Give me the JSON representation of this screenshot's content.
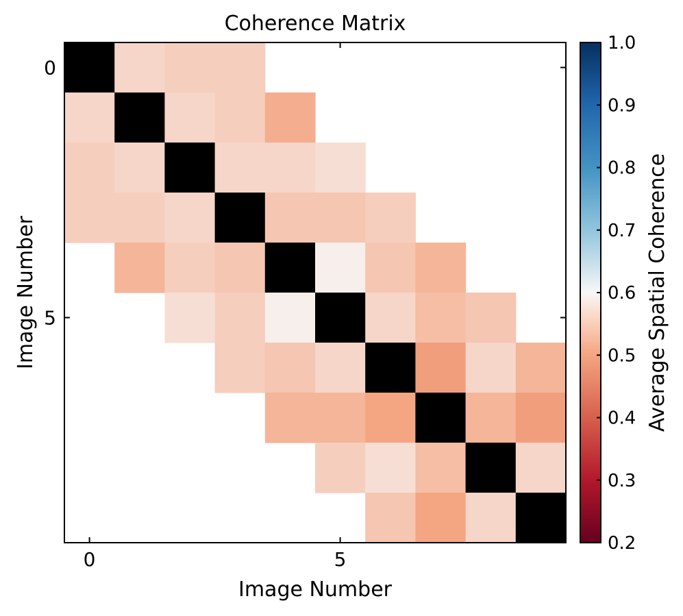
{
  "chart_data": {
    "type": "heatmap",
    "title": "Coherence Matrix",
    "xlabel": "Image Number",
    "ylabel": "Image Number",
    "x_ticks": [
      0,
      5
    ],
    "y_ticks": [
      0,
      5
    ],
    "n": 10,
    "colorbar": {
      "label": "Average Spatial Coherence",
      "min": 0.2,
      "max": 1.0,
      "ticks": [
        "1.0",
        "0.9",
        "0.8",
        "0.7",
        "0.6",
        "0.5",
        "0.4",
        "0.3",
        "0.2"
      ],
      "colormap": "RdBu",
      "masked_below_display": "0.7 and above shown in blue",
      "diagonal_color": "#000000"
    },
    "matrix": [
      [
        null,
        0.56,
        0.55,
        0.55,
        null,
        null,
        null,
        null,
        null,
        null
      ],
      [
        0.56,
        null,
        0.56,
        0.55,
        0.51,
        null,
        null,
        null,
        null,
        null
      ],
      [
        0.55,
        0.56,
        null,
        0.56,
        0.56,
        0.57,
        null,
        null,
        null,
        null
      ],
      [
        0.55,
        0.55,
        0.56,
        null,
        0.54,
        0.54,
        0.55,
        null,
        null,
        null
      ],
      [
        null,
        0.52,
        0.55,
        0.54,
        null,
        0.59,
        0.54,
        0.52,
        null,
        null
      ],
      [
        null,
        null,
        0.57,
        0.55,
        0.59,
        null,
        0.56,
        0.53,
        0.54,
        null
      ],
      [
        null,
        null,
        null,
        0.55,
        0.54,
        0.56,
        null,
        0.49,
        0.56,
        0.52
      ],
      [
        null,
        null,
        null,
        null,
        0.52,
        0.52,
        0.5,
        null,
        0.52,
        0.49
      ],
      [
        null,
        null,
        null,
        null,
        null,
        0.55,
        0.57,
        0.53,
        null,
        0.56
      ],
      [
        null,
        null,
        null,
        null,
        null,
        null,
        0.54,
        0.5,
        0.56,
        null
      ]
    ]
  }
}
